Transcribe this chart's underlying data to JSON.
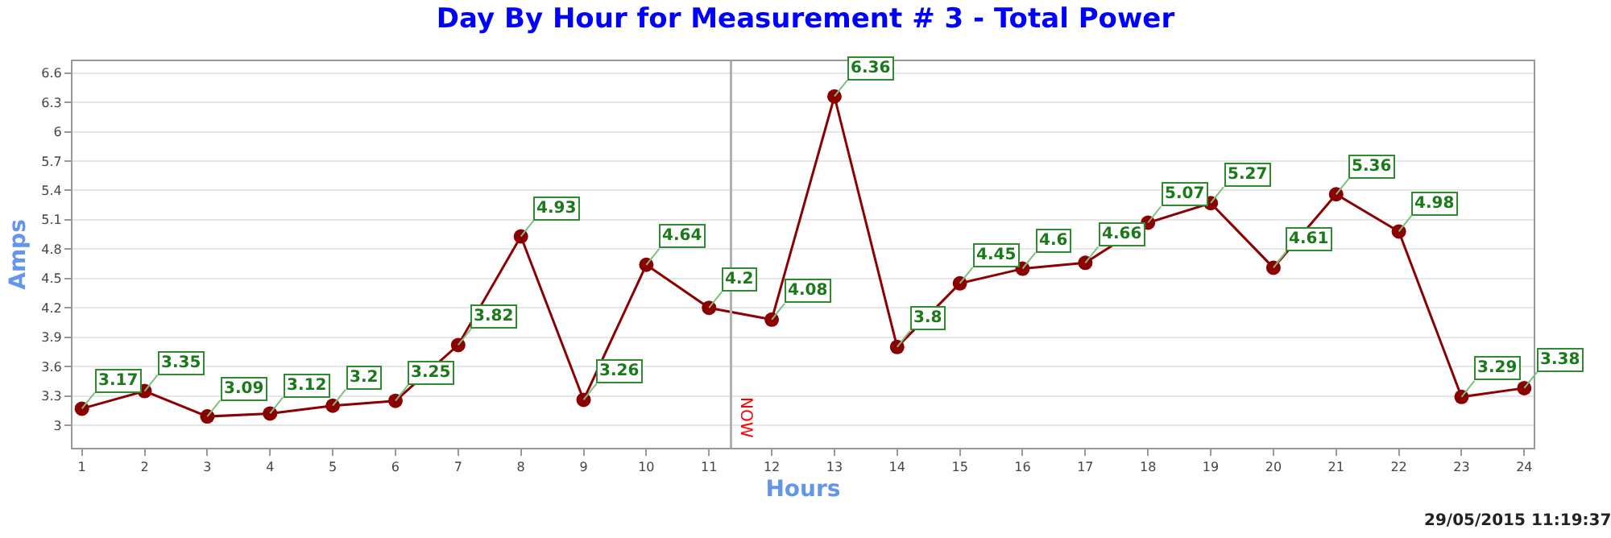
{
  "chart_data": {
    "type": "line",
    "title": "Day By Hour for Measurement # 3 - Total Power",
    "xlabel": "Hours",
    "ylabel": "Amps",
    "x": [
      1,
      2,
      3,
      4,
      5,
      6,
      7,
      8,
      9,
      10,
      11,
      12,
      13,
      14,
      15,
      16,
      17,
      18,
      19,
      20,
      21,
      22,
      23,
      24
    ],
    "series": [
      {
        "color": "#8b0000",
        "values": [
          3.17,
          3.35,
          3.09,
          3.12,
          3.2,
          3.25,
          3.82,
          4.93,
          3.26,
          4.64,
          4.2,
          4.08,
          6.36,
          3.8,
          4.45,
          4.6,
          4.66,
          5.07,
          5.27,
          4.61,
          5.36,
          4.98,
          3.29,
          3.38
        ]
      }
    ],
    "xlim": [
      0.85,
      24.15
    ],
    "xticks": [
      1,
      2,
      3,
      4,
      5,
      6,
      7,
      8,
      9,
      10,
      11,
      12,
      13,
      14,
      15,
      16,
      17,
      18,
      19,
      20,
      21,
      22,
      23,
      24
    ],
    "ylim": [
      2.77,
      6.72
    ],
    "yticks": [
      3,
      3.3,
      3.6,
      3.9,
      4.2,
      4.5,
      4.8,
      5.1,
      5.4,
      5.7,
      6,
      6.3,
      6.6
    ],
    "grid": "y",
    "marker": "circle",
    "line_style": "solid",
    "data_labels": true,
    "ref_lines": [
      {
        "axis": "x",
        "value": 11.35,
        "label": "NOW",
        "color": "#b0b0b0"
      }
    ],
    "annotations": [
      "29/05/2015 11:19:37"
    ]
  }
}
